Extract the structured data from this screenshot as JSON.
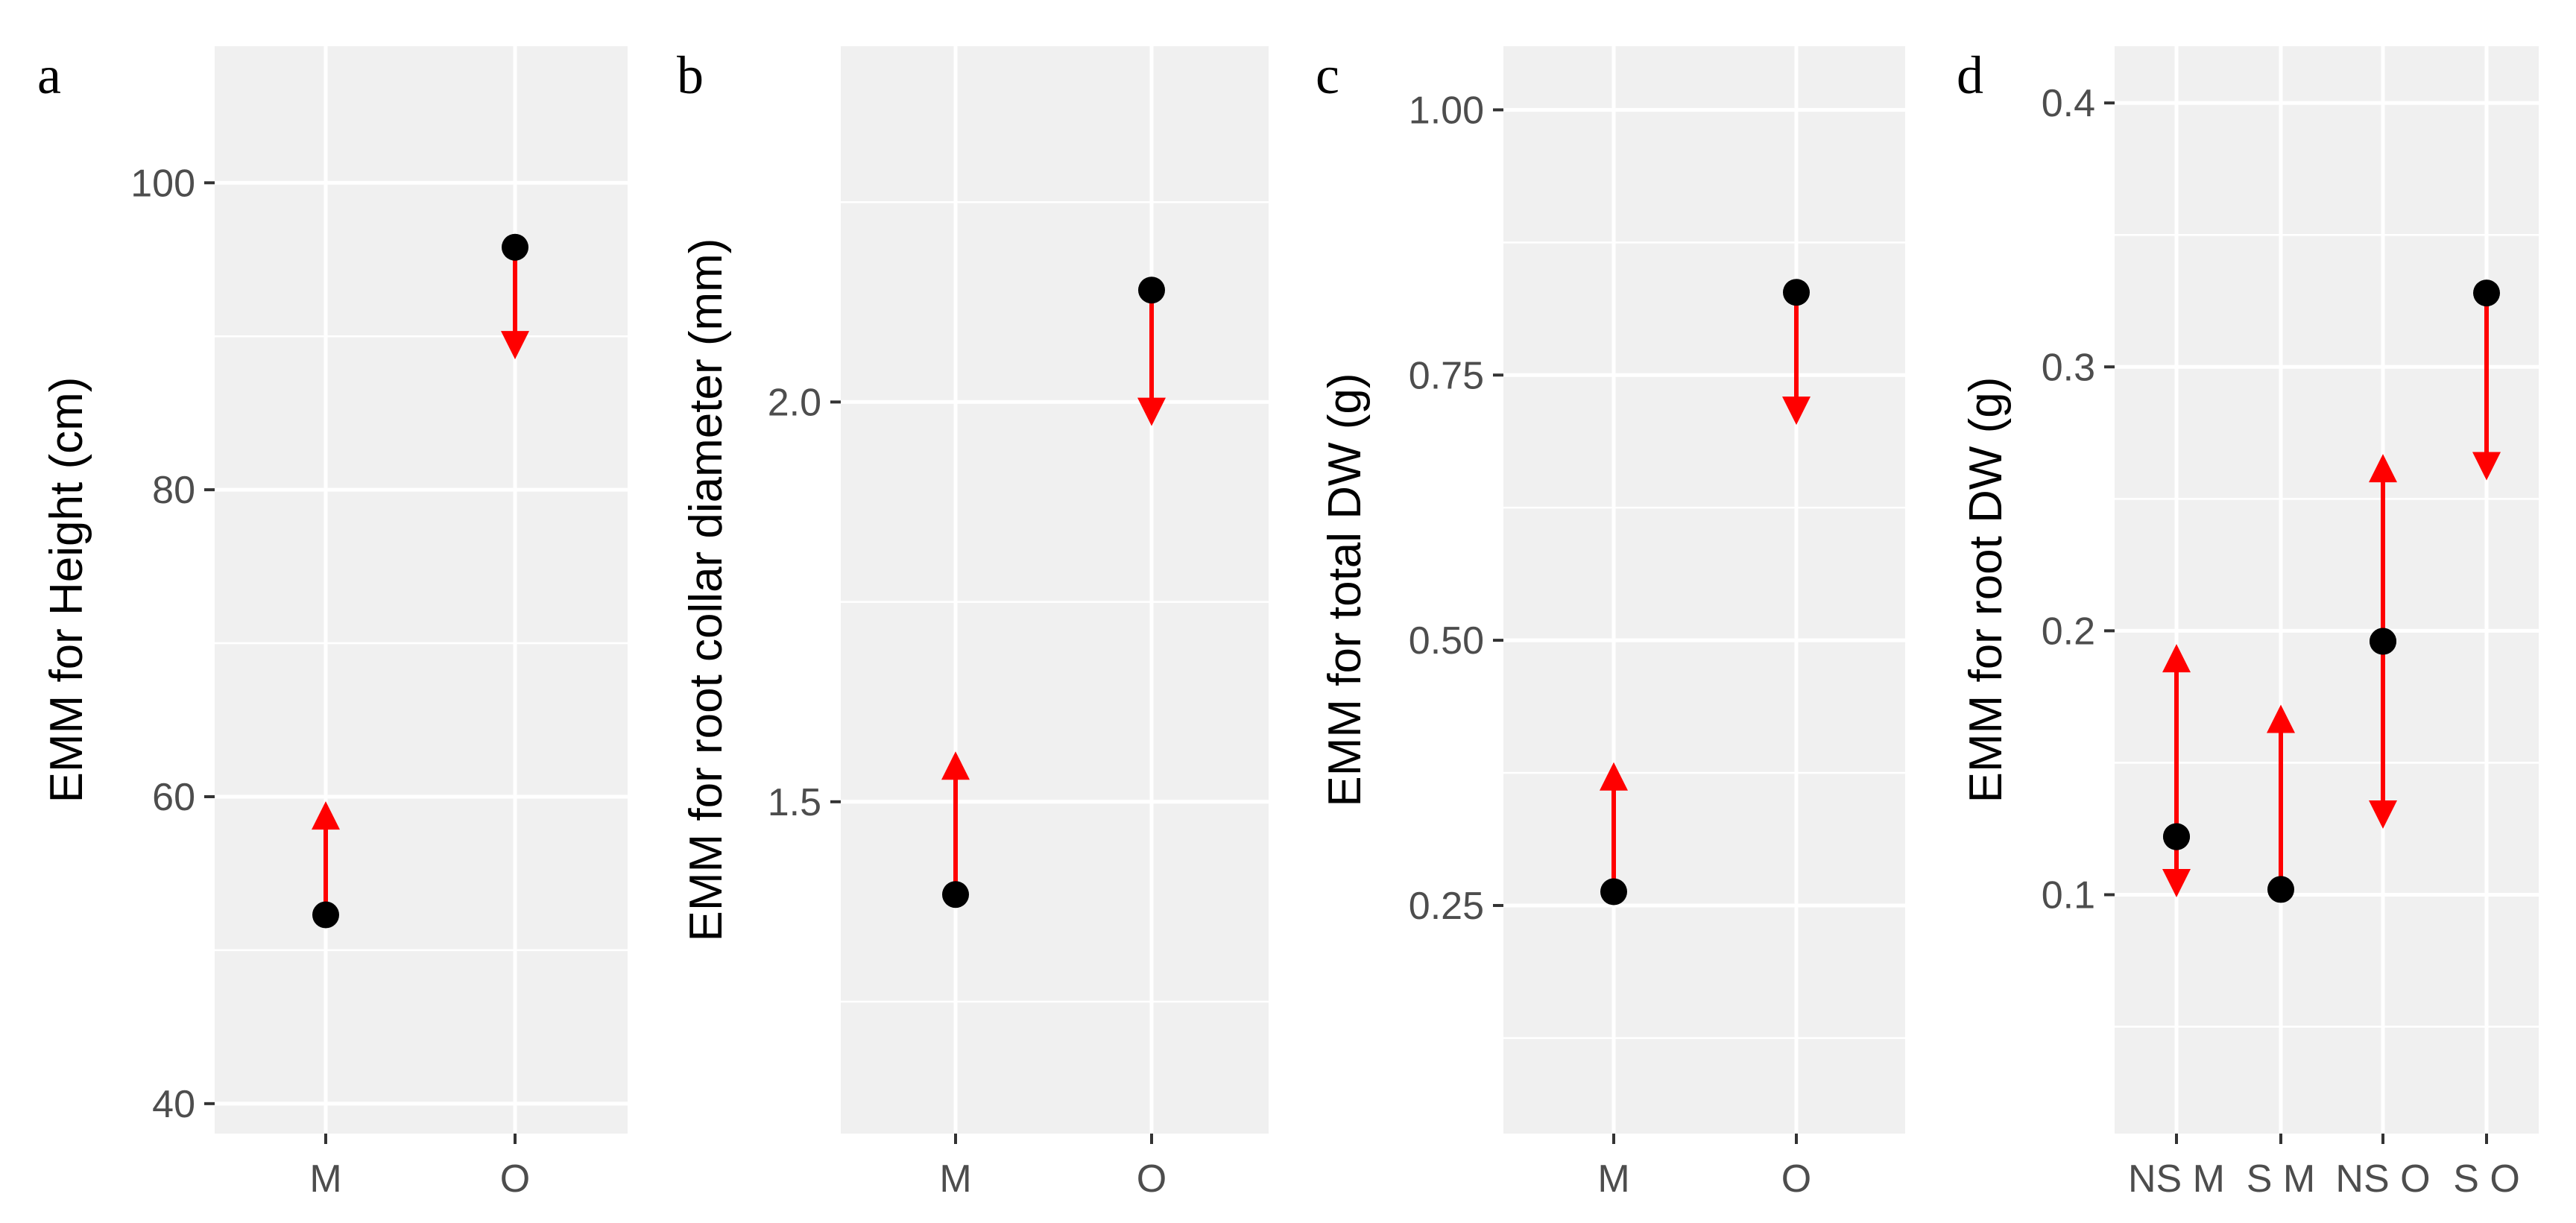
{
  "colors": {
    "panel_bg": "#f0f0f0",
    "grid": "#ffffff",
    "point": "#000000",
    "arrow": "#ff0000",
    "tick_text": "#4d4d4d",
    "tick_mark": "#333333"
  },
  "chart_data": [
    {
      "id": "a",
      "type": "scatter",
      "panel_label": "a",
      "ylabel": "EMM for Height (cm)",
      "xlabel": "",
      "categories": [
        "M",
        "O"
      ],
      "ylim": [
        38.05,
        108.9
      ],
      "yticks": [
        40,
        60,
        80,
        100
      ],
      "ytick_labels": [
        "40",
        "60",
        "80",
        "100"
      ],
      "yminor": [
        50,
        70,
        90
      ],
      "points": [
        {
          "category": "M",
          "emm": 52.3,
          "arrow_to": 59.7
        },
        {
          "category": "O",
          "emm": 95.8,
          "arrow_to": 88.5
        }
      ]
    },
    {
      "id": "b",
      "type": "scatter",
      "panel_label": "b",
      "ylabel": "EMM for root collar diameter (mm)",
      "xlabel": "",
      "categories": [
        "M",
        "O"
      ],
      "ylim": [
        1.085,
        2.445
      ],
      "yticks": [
        1.5,
        2.0
      ],
      "ytick_labels": [
        "1.5",
        "2.0"
      ],
      "yminor": [
        1.25,
        1.75,
        2.25
      ],
      "points": [
        {
          "category": "M",
          "emm": 1.384,
          "arrow_to": 1.563
        },
        {
          "category": "O",
          "emm": 2.14,
          "arrow_to": 1.97
        }
      ]
    },
    {
      "id": "c",
      "type": "scatter",
      "panel_label": "c",
      "ylabel": "EMM for total DW (g)",
      "xlabel": "",
      "categories": [
        "M",
        "O"
      ],
      "ylim": [
        0.035,
        1.06
      ],
      "yticks": [
        0.25,
        0.5,
        0.75,
        1.0
      ],
      "ytick_labels": [
        "0.25",
        "0.50",
        "0.75",
        "1.00"
      ],
      "yminor": [
        0.125,
        0.375,
        0.625,
        0.875
      ],
      "points": [
        {
          "category": "M",
          "emm": 0.263,
          "arrow_to": 0.385
        },
        {
          "category": "O",
          "emm": 0.828,
          "arrow_to": 0.703
        }
      ]
    },
    {
      "id": "d",
      "type": "scatter",
      "panel_label": "d",
      "ylabel": "EMM for root DW (g)",
      "xlabel": "",
      "categories": [
        "NS M",
        "S M",
        "NS O",
        "S O"
      ],
      "ylim": [
        0.0095,
        0.4215
      ],
      "yticks": [
        0.1,
        0.2,
        0.3,
        0.4
      ],
      "ytick_labels": [
        "0.1",
        "0.2",
        "0.3",
        "0.4"
      ],
      "yminor": [
        0.05,
        0.15,
        0.25,
        0.35
      ],
      "points": [
        {
          "category": "NS M",
          "emm": 0.122,
          "arrow_to": 0.195
        },
        {
          "category": "NS M",
          "emm": 0.122,
          "arrow_to": 0.099
        },
        {
          "category": "S M",
          "emm": 0.102,
          "arrow_to": 0.172
        },
        {
          "category": "NS O",
          "emm": 0.196,
          "arrow_to": 0.267
        },
        {
          "category": "NS O",
          "emm": 0.196,
          "arrow_to": 0.125
        },
        {
          "category": "S O",
          "emm": 0.328,
          "arrow_to": 0.257
        }
      ]
    }
  ]
}
